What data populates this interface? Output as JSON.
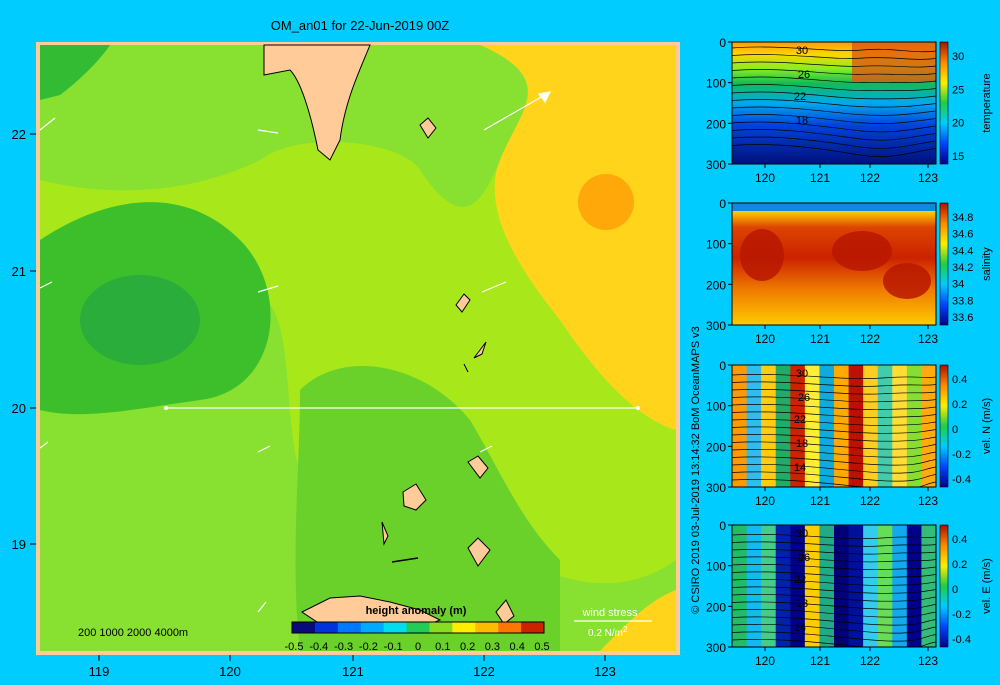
{
  "map": {
    "title": "OM_an01 for 22-Jun-2019 00Z",
    "lon_ticks": [
      "119",
      "120",
      "121",
      "122",
      "123"
    ],
    "lat_ticks": [
      "22",
      "21",
      "20",
      "19"
    ],
    "depth_legend": "200  1000  2000  4000m",
    "colorbar_title": "height anomaly (m)",
    "colorbar_ticks": [
      "-0.5",
      "-0.4",
      "-0.3",
      "-0.2",
      "-0.1",
      "0",
      "0.1",
      "0.2",
      "0.3",
      "0.4",
      "0.5"
    ],
    "wind_label": "wind stress",
    "wind_scale": "0.2 N/m",
    "wind_scale_sup": "2"
  },
  "credit": "© CSIRO 2019   03-Jul-2019 13:14:32 BoM OceanMAPS v3",
  "panels": [
    {
      "label": "temperature",
      "cb_ticks": [
        "30",
        "25",
        "20",
        "15"
      ],
      "contour_labels": [
        "30",
        "26",
        "22",
        "18"
      ]
    },
    {
      "label": "salinity",
      "cb_ticks": [
        "34.8",
        "34.6",
        "34.4",
        "34.2",
        "34",
        "33.8",
        "33.6"
      ],
      "contour_labels": []
    },
    {
      "label": "vel. N  (m/s)",
      "cb_ticks": [
        "0.4",
        "0.2",
        "0",
        "-0.2",
        "-0.4"
      ],
      "contour_labels": [
        "30",
        "26",
        "22",
        "18",
        "14"
      ]
    },
    {
      "label": "vel. E  (m/s)",
      "cb_ticks": [
        "0.4",
        "0.2",
        "0",
        "-0.2",
        "-0.4"
      ],
      "contour_labels": [
        "30",
        "26",
        "22",
        "18",
        "14"
      ]
    }
  ],
  "panel_x_ticks": [
    "120",
    "121",
    "122",
    "123"
  ],
  "panel_y_ticks": [
    "0",
    "100",
    "200",
    "300"
  ],
  "chart_data": [
    {
      "type": "heatmap",
      "title": "OM_an01 for 22-Jun-2019 00Z",
      "colorbar_label": "height anomaly (m)",
      "xlim": [
        118.5,
        123.5
      ],
      "ylim": [
        18.25,
        22.7
      ],
      "clim": [
        -0.5,
        0.5
      ],
      "section_line": {
        "lat": 20,
        "lon_start": 119.5,
        "lon_end": 123.1
      },
      "notable_features": [
        {
          "lon": 119.7,
          "lat": 20.7,
          "value": -0.2
        },
        {
          "lon": 123.1,
          "lat": 21.5,
          "value": 0.3
        }
      ]
    },
    {
      "type": "heatmap",
      "colorbar_label": "temperature",
      "xlim": [
        119.5,
        123.3
      ],
      "ylim": [
        300,
        0
      ],
      "clim": [
        14,
        32
      ]
    },
    {
      "type": "heatmap",
      "colorbar_label": "salinity",
      "xlim": [
        119.5,
        123.3
      ],
      "ylim": [
        300,
        0
      ],
      "clim": [
        33.5,
        34.9
      ]
    },
    {
      "type": "heatmap",
      "colorbar_label": "vel. N  (m/s)",
      "xlim": [
        119.5,
        123.3
      ],
      "ylim": [
        300,
        0
      ],
      "clim": [
        -0.4,
        0.4
      ]
    },
    {
      "type": "heatmap",
      "colorbar_label": "vel. E  (m/s)",
      "xlim": [
        119.5,
        123.3
      ],
      "ylim": [
        300,
        0
      ],
      "clim": [
        -0.4,
        0.4
      ]
    }
  ]
}
